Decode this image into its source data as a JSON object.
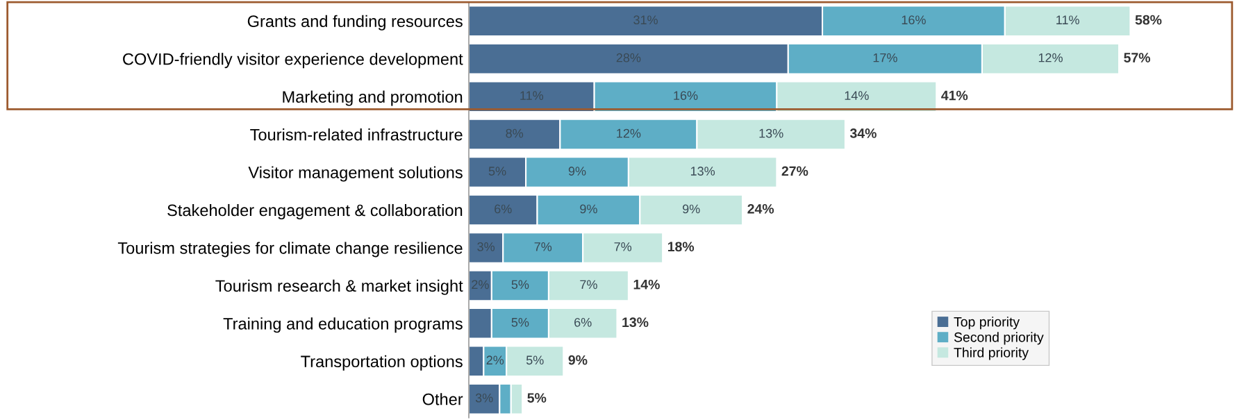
{
  "chart_data": {
    "type": "bar",
    "orientation": "horizontal",
    "stacked": true,
    "categories": [
      "Grants and funding resources",
      "COVID-friendly visitor experience development",
      "Marketing and promotion",
      "Tourism-related infrastructure",
      "Visitor management solutions",
      "Stakeholder engagement & collaboration",
      "Tourism strategies for climate change resilience",
      "Tourism research & market insight",
      "Training and education programs",
      "Transportation options",
      "Other"
    ],
    "series": [
      {
        "name": "Top priority",
        "color": "#4a6e94",
        "values": [
          31,
          28,
          11,
          8,
          5,
          6,
          3,
          2,
          2,
          1.3,
          2.7
        ],
        "value_labels": [
          "31%",
          "28%",
          "11%",
          "8%",
          "5%",
          "6%",
          "3%",
          "2%",
          null,
          null,
          "3%"
        ]
      },
      {
        "name": "Second priority",
        "color": "#5eaec6",
        "values": [
          16,
          17,
          16,
          12,
          9,
          9,
          7,
          5,
          5,
          2,
          1
        ],
        "value_labels": [
          "16%",
          "17%",
          "16%",
          "12%",
          "9%",
          "9%",
          "7%",
          "5%",
          "5%",
          "2%",
          null
        ]
      },
      {
        "name": "Third priority",
        "color": "#c5e8e0",
        "values": [
          11,
          12,
          14,
          13,
          13,
          9,
          7,
          7,
          6,
          5,
          1
        ],
        "value_labels": [
          "11%",
          "12%",
          "14%",
          "13%",
          "13%",
          "9%",
          "7%",
          "7%",
          "6%",
          "5%",
          null
        ]
      }
    ],
    "totals": [
      "58%",
      "57%",
      "41%",
      "34%",
      "27%",
      "24%",
      "18%",
      "14%",
      "13%",
      "9%",
      "5%"
    ],
    "legend": "bottom right",
    "grid": false
  }
}
